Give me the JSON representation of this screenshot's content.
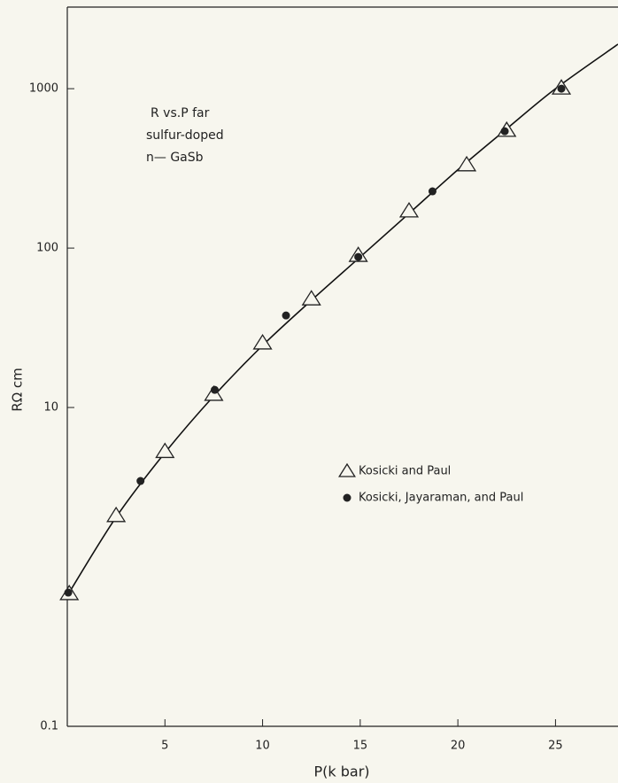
{
  "chart_data": {
    "type": "scatter",
    "annotation": [
      "R vs.P far",
      "sulfur-doped",
      "n— GaSb"
    ],
    "x_label": "P(k bar)",
    "y_label": "RΩ cm",
    "log_y": true,
    "xlim": [
      0,
      28.2
    ],
    "ylim": [
      0.1,
      3250
    ],
    "xticks": [
      5,
      10,
      15,
      20,
      25
    ],
    "yticks": [
      1000,
      100,
      10,
      0.1
    ],
    "series": [
      {
        "name": "Kosicki and Paul",
        "marker": "triangle",
        "color": "#222222",
        "x": [
          0.1,
          2.5,
          5.0,
          7.5,
          10.0,
          12.5,
          14.9,
          17.5,
          20.45,
          22.5,
          25.3
        ],
        "values": [
          0.68,
          2.1,
          5.3,
          12.1,
          25.4,
          48,
          90,
          171,
          333,
          548,
          1010
        ]
      },
      {
        "name": "Kosicki, Jayaraman, and Paul",
        "marker": "dot",
        "color": "#222222",
        "x": [
          0.05,
          3.75,
          7.55,
          11.2,
          14.9,
          18.7,
          22.4,
          25.3
        ],
        "values": [
          0.69,
          3.46,
          12.9,
          37.8,
          88,
          227,
          541,
          1000
        ]
      }
    ],
    "curve": {
      "color": "#111111",
      "x": [
        0,
        2.5,
        5,
        7.5,
        10,
        12.5,
        15,
        17.5,
        20,
        22.5,
        25,
        28.2
      ],
      "values": [
        0.66,
        2.05,
        5.2,
        11.8,
        24.5,
        47,
        88,
        165,
        310,
        560,
        1000,
        1900
      ]
    }
  }
}
